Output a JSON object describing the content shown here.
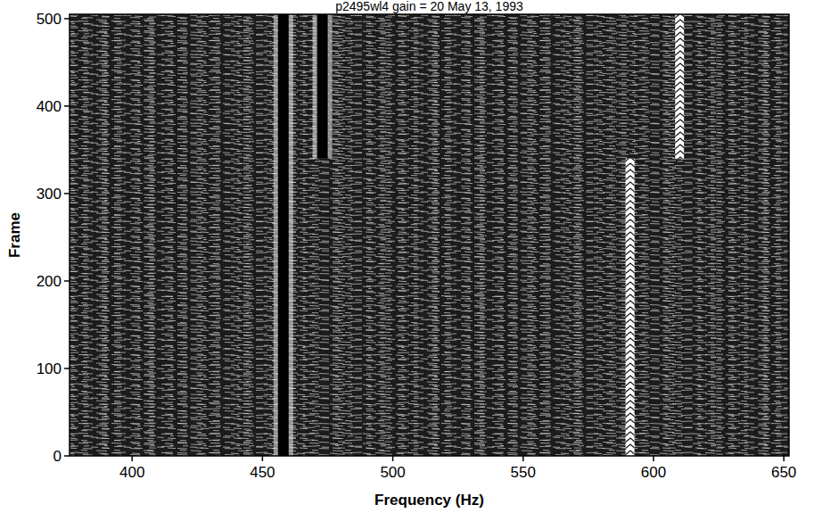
{
  "chart_data": {
    "type": "waterfall",
    "title": "p2495wl4 gain = 20 May 13, 1993",
    "x_label": "Frequency (Hz)",
    "y_label": "Frame",
    "xlim": [
      376,
      652
    ],
    "ylim": [
      0,
      505
    ],
    "xticks": [
      400,
      450,
      500,
      550,
      600,
      650
    ],
    "yticks": [
      0,
      100,
      200,
      300,
      400,
      500
    ],
    "grid": false,
    "series": [
      {
        "frequency": 458,
        "frames": [
          0,
          505
        ],
        "color": "#000000"
      },
      {
        "frequency": 473,
        "frames": [
          340,
          505
        ],
        "color": "#000000"
      },
      {
        "frequency": 591,
        "frames": [
          0,
          340
        ],
        "color": "#ffffff"
      },
      {
        "frequency": 610,
        "frames": [
          340,
          505
        ],
        "color": "#ffffff"
      }
    ]
  }
}
